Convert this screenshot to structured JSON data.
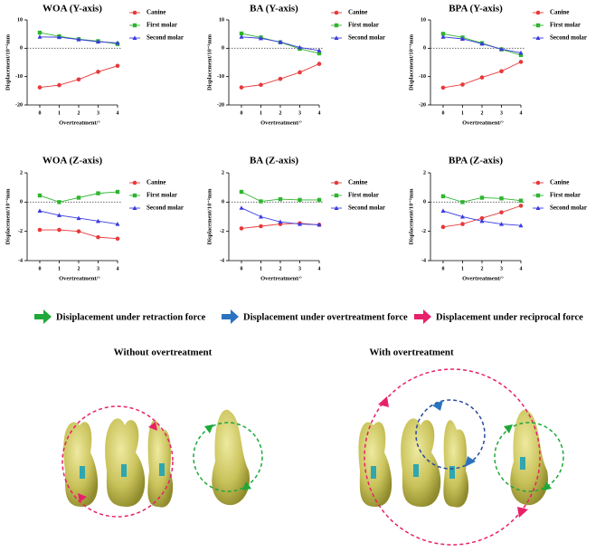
{
  "chart_data": [
    {
      "type": "line",
      "title": "WOA (Y-axis)",
      "ylabel": "Displacement/10⁻²mm",
      "xlabel": "Overtreatment/°",
      "x": [
        0,
        1,
        2,
        3,
        4
      ],
      "xlim": [
        -0.65,
        4
      ],
      "xticks": [
        0,
        1,
        2,
        3,
        4
      ],
      "ylim": [
        -20,
        10
      ],
      "yticks": [
        -20,
        -10,
        0,
        10
      ],
      "zero_line": true,
      "series": [
        {
          "name": "Canine",
          "color": "#e8393a",
          "marker": "circle",
          "values": [
            -13.8,
            -13,
            -11,
            -8.3,
            -6.2
          ]
        },
        {
          "name": "First molar",
          "color": "#2fb52f",
          "marker": "square",
          "values": [
            5.5,
            4.2,
            3.2,
            2.5,
            1.5
          ]
        },
        {
          "name": "Second molar",
          "color": "#3a3ae0",
          "marker": "triangle",
          "values": [
            4,
            3.9,
            3.1,
            2.3,
            1.9
          ]
        }
      ]
    },
    {
      "type": "line",
      "title": "BA (Y-axis)",
      "ylabel": "Displacement/10⁻²mm",
      "xlabel": "Overtreatment/°",
      "x": [
        0,
        1,
        2,
        3,
        4
      ],
      "xlim": [
        -0.65,
        4
      ],
      "xticks": [
        0,
        1,
        2,
        3,
        4
      ],
      "ylim": [
        -20,
        10
      ],
      "yticks": [
        -20,
        -10,
        0,
        10
      ],
      "zero_line": true,
      "series": [
        {
          "name": "Canine",
          "color": "#e8393a",
          "marker": "circle",
          "values": [
            -13.8,
            -12.9,
            -10.8,
            -8.5,
            -5.5
          ]
        },
        {
          "name": "First molar",
          "color": "#2fb52f",
          "marker": "square",
          "values": [
            5.2,
            3.8,
            2.1,
            -0.2,
            -1.8
          ]
        },
        {
          "name": "Second molar",
          "color": "#3a3ae0",
          "marker": "triangle",
          "values": [
            4,
            3.5,
            2.2,
            0.3,
            -0.8
          ]
        }
      ]
    },
    {
      "type": "line",
      "title": "BPA (Y-axis)",
      "ylabel": "Displacement/10⁻²mm",
      "xlabel": "Overtreatment/°",
      "x": [
        0,
        1,
        2,
        3,
        4
      ],
      "xlim": [
        -0.65,
        4
      ],
      "xticks": [
        0,
        1,
        2,
        3,
        4
      ],
      "ylim": [
        -20,
        10
      ],
      "yticks": [
        -20,
        -10,
        0,
        10
      ],
      "zero_line": true,
      "series": [
        {
          "name": "Canine",
          "color": "#e8393a",
          "marker": "circle",
          "values": [
            -13.9,
            -12.8,
            -10.3,
            -8.1,
            -4.8
          ]
        },
        {
          "name": "First molar",
          "color": "#2fb52f",
          "marker": "square",
          "values": [
            5.1,
            3.8,
            1.8,
            -0.4,
            -2.4
          ]
        },
        {
          "name": "Second molar",
          "color": "#3a3ae0",
          "marker": "triangle",
          "values": [
            4,
            3.3,
            1.6,
            -0.3,
            -1.6
          ]
        }
      ]
    },
    {
      "type": "line",
      "title": "WOA (Z-axis)",
      "ylabel": "Displacement/10⁻²mm",
      "xlabel": "Overtreatment/°",
      "x": [
        0,
        1,
        2,
        3,
        4
      ],
      "xlim": [
        -0.65,
        4
      ],
      "xticks": [
        0,
        1,
        2,
        3,
        4
      ],
      "ylim": [
        -4,
        2
      ],
      "yticks": [
        -4,
        -2,
        0,
        2
      ],
      "zero_line": true,
      "series": [
        {
          "name": "Canine",
          "color": "#e8393a",
          "marker": "circle",
          "values": [
            -1.9,
            -1.9,
            -2.0,
            -2.4,
            -2.5
          ]
        },
        {
          "name": "First molar",
          "color": "#2fb52f",
          "marker": "square",
          "values": [
            0.45,
            0.0,
            0.3,
            0.6,
            0.7
          ]
        },
        {
          "name": "Second molar",
          "color": "#3a3ae0",
          "marker": "triangle",
          "values": [
            -0.6,
            -0.9,
            -1.1,
            -1.3,
            -1.5
          ]
        }
      ]
    },
    {
      "type": "line",
      "title": "BA (Z-axis)",
      "ylabel": "Displacement/10⁻²mm",
      "xlabel": "Overtreatment/°",
      "x": [
        0,
        1,
        2,
        3,
        4
      ],
      "xlim": [
        -0.65,
        4
      ],
      "xticks": [
        0,
        1,
        2,
        3,
        4
      ],
      "ylim": [
        -4,
        2
      ],
      "yticks": [
        -4,
        -2,
        0,
        2
      ],
      "zero_line": true,
      "series": [
        {
          "name": "Canine",
          "color": "#e8393a",
          "marker": "circle",
          "values": [
            -1.8,
            -1.65,
            -1.5,
            -1.45,
            -1.55
          ]
        },
        {
          "name": "First molar",
          "color": "#2fb52f",
          "marker": "square",
          "values": [
            0.7,
            0.05,
            0.2,
            0.15,
            0.15
          ]
        },
        {
          "name": "Second molar",
          "color": "#3a3ae0",
          "marker": "triangle",
          "values": [
            -0.4,
            -1.0,
            -1.35,
            -1.5,
            -1.55
          ]
        }
      ]
    },
    {
      "type": "line",
      "title": "BPA (Z-axis)",
      "ylabel": "Displacement/10⁻²mm",
      "xlabel": "Overtreatment/°",
      "x": [
        0,
        1,
        2,
        3,
        4
      ],
      "xlim": [
        -0.65,
        4
      ],
      "xticks": [
        0,
        1,
        2,
        3,
        4
      ],
      "ylim": [
        -4,
        2
      ],
      "yticks": [
        -4,
        -2,
        0,
        2
      ],
      "zero_line": true,
      "series": [
        {
          "name": "Canine",
          "color": "#e8393a",
          "marker": "circle",
          "values": [
            -1.7,
            -1.5,
            -1.1,
            -0.7,
            -0.25
          ]
        },
        {
          "name": "First molar",
          "color": "#2fb52f",
          "marker": "square",
          "values": [
            0.4,
            0.0,
            0.3,
            0.25,
            0.1
          ]
        },
        {
          "name": "Second molar",
          "color": "#3a3ae0",
          "marker": "triangle",
          "values": [
            -0.6,
            -1.0,
            -1.3,
            -1.5,
            -1.6
          ]
        }
      ]
    }
  ],
  "force_legend": [
    {
      "label": "Disiplacement under retraction force",
      "color": "#1fa83a"
    },
    {
      "label": "Displacement under overtreatment force",
      "color": "#2a73c0"
    },
    {
      "label": "Displacement under reciprocal force",
      "color": "#e8206a"
    }
  ],
  "illustrations": [
    {
      "label": "Without overtreatment"
    },
    {
      "label": "With overtreatment"
    }
  ]
}
